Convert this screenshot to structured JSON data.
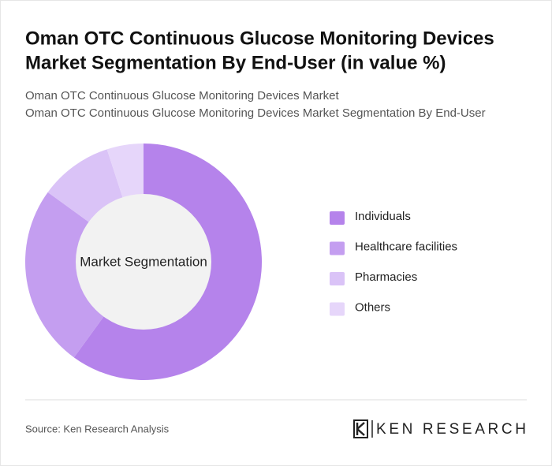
{
  "chart_data": {
    "type": "donut",
    "title": [
      "Oman OTC Continuous Glucose Monitoring Devices",
      "Market Segmentation By End-User (in value %)"
    ],
    "subtitle": [
      "Oman OTC Continuous Glucose Monitoring Devices Market",
      "Oman OTC Continuous Glucose Monitoring Devices Market Segmentation By End-User"
    ],
    "center_label": "Market Segmentation",
    "categories": [
      "Individuals",
      "Healthcare facilities",
      "Pharmacies",
      "Others"
    ],
    "values": [
      60,
      25,
      10,
      5
    ],
    "colors": [
      "#b583eb",
      "#c49ef0",
      "#dac3f7",
      "#e6d6fa"
    ]
  },
  "footer": {
    "source": "Source: Ken Research Analysis",
    "logo": "KEN RESEARCH"
  }
}
